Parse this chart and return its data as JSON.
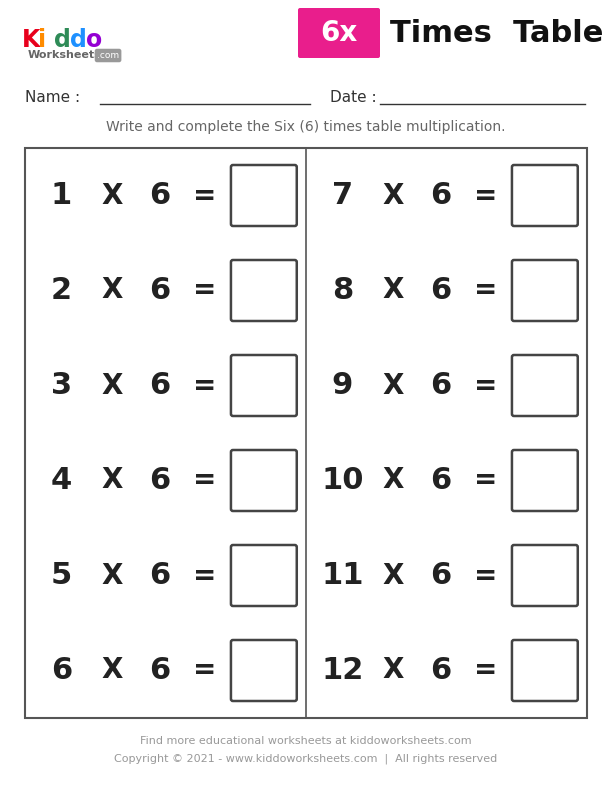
{
  "title": "Times Table",
  "multiplier": 6,
  "left_numbers": [
    1,
    2,
    3,
    4,
    5,
    6
  ],
  "right_numbers": [
    7,
    8,
    9,
    10,
    11,
    12
  ],
  "instruction": "Write and complete the Six (6) times table multiplication.",
  "name_label": "Name : ",
  "date_label": "Date : ",
  "footer_line1": "Find more educational worksheets at kiddoworksheets.com",
  "footer_line2": "Copyright © 2021 - www.kiddoworksheets.com  |  All rights reserved",
  "bg_color": "#ffffff",
  "text_color": "#222222",
  "box_border_color": "#444444",
  "grid_border_color": "#555555",
  "instruction_color": "#666666",
  "footer_color": "#999999",
  "kiddo_letters": [
    [
      "K",
      "#e8001c"
    ],
    [
      "i",
      "#ff8c00"
    ],
    [
      "d",
      "#2e8b57"
    ],
    [
      "d",
      "#1e90ff"
    ],
    [
      "o",
      "#9400d3"
    ]
  ],
  "pink_color": "#e91e8c"
}
